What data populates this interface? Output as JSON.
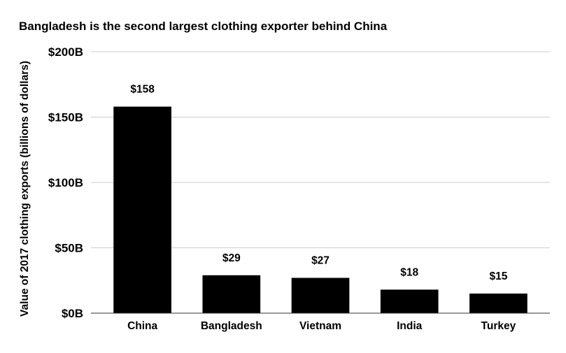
{
  "chart_data": {
    "type": "bar",
    "title": "Bangladesh is the second largest clothing exporter behind China",
    "xlabel": "",
    "ylabel": "Value of 2017 clothing exports (billions of dollars)",
    "categories": [
      "China",
      "Bangladesh",
      "Vietnam",
      "India",
      "Turkey"
    ],
    "values": [
      158,
      29,
      27,
      18,
      15
    ],
    "data_labels": [
      "$158",
      "$29",
      "$27",
      "$18",
      "$15"
    ],
    "ylim": [
      0,
      200
    ],
    "yticks": [
      0,
      50,
      100,
      150,
      200
    ],
    "ytick_labels": [
      "$0B",
      "$50B",
      "$100B",
      "$150B",
      "$200B"
    ],
    "grid": true,
    "legend": "none",
    "colors": {
      "bar": "#000000",
      "grid": "#cccccc",
      "axis": "#333333",
      "text": "#000000"
    }
  }
}
